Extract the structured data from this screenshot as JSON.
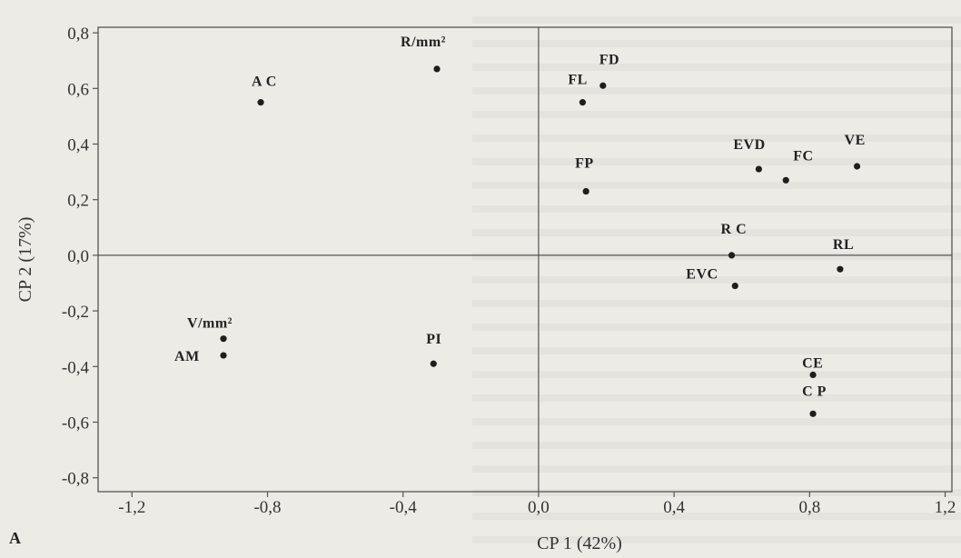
{
  "panel_label": "A",
  "chart_data": {
    "type": "scatter",
    "xlabel": "CP 1 (42%)",
    "ylabel": "CP 2 (17%)",
    "xlim": [
      -1.3,
      1.22
    ],
    "ylim": [
      -0.85,
      0.82
    ],
    "x_ticks": [
      -1.2,
      -0.8,
      -0.4,
      0.0,
      0.4,
      0.8,
      1.2
    ],
    "x_tick_labels": [
      "-1,2",
      "-0,8",
      "-0,4",
      "0,0",
      "0,4",
      "0,8",
      "1,2"
    ],
    "y_ticks": [
      0.8,
      0.6,
      0.4,
      0.2,
      0.0,
      -0.2,
      -0.4,
      -0.6,
      -0.8
    ],
    "y_tick_labels": [
      "0,8",
      "0,6",
      "0,4",
      "0,2",
      "0,0",
      "-0,2",
      "-0,4",
      "-0,6",
      "-0,8"
    ],
    "reference_lines": {
      "x": 0.0,
      "y": 0.0
    },
    "points": [
      {
        "label": "R/mm²",
        "x": -0.3,
        "y": 0.67
      },
      {
        "label": "A C",
        "x": -0.82,
        "y": 0.55
      },
      {
        "label": "FL",
        "x": 0.13,
        "y": 0.55
      },
      {
        "label": "FD",
        "x": 0.19,
        "y": 0.61
      },
      {
        "label": "FP",
        "x": 0.14,
        "y": 0.23
      },
      {
        "label": "EVD",
        "x": 0.65,
        "y": 0.31
      },
      {
        "label": "FC",
        "x": 0.73,
        "y": 0.27
      },
      {
        "label": "VE",
        "x": 0.94,
        "y": 0.32
      },
      {
        "label": "R C",
        "x": 0.57,
        "y": 0.0
      },
      {
        "label": "RL",
        "x": 0.89,
        "y": -0.05
      },
      {
        "label": "EVC",
        "x": 0.58,
        "y": -0.11
      },
      {
        "label": "V/mm²",
        "x": -0.93,
        "y": -0.3
      },
      {
        "label": "AM",
        "x": -0.93,
        "y": -0.36
      },
      {
        "label": "PI",
        "x": -0.31,
        "y": -0.39
      },
      {
        "label": "CE",
        "x": 0.81,
        "y": -0.43
      },
      {
        "label": "C P",
        "x": 0.81,
        "y": -0.57
      }
    ]
  }
}
